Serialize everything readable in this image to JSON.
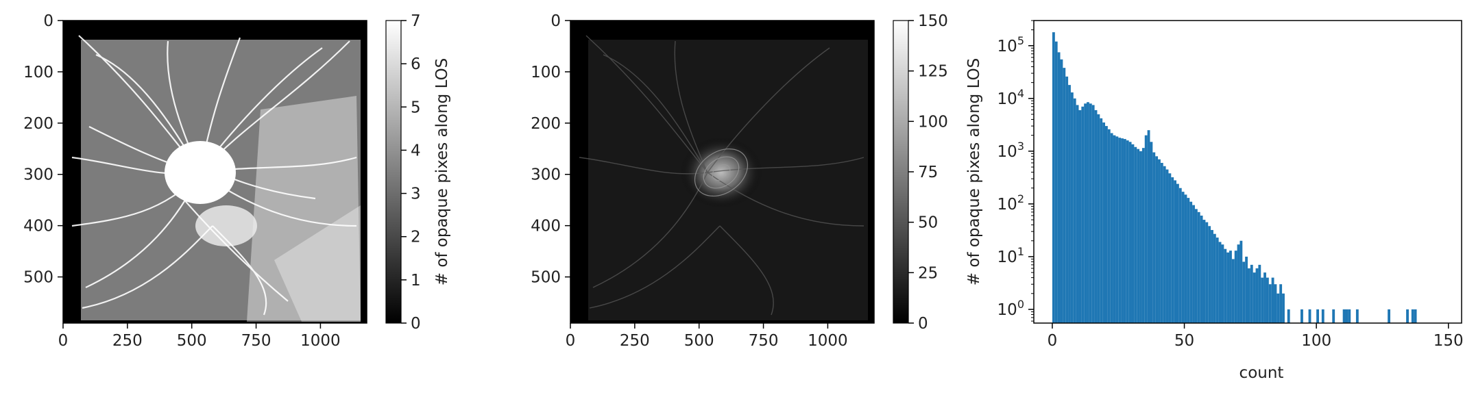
{
  "chart_data": [
    {
      "type": "heatmap",
      "title": "",
      "x_range": [
        0,
        1180
      ],
      "y_range": [
        0,
        590
      ],
      "x_ticks": [
        "0",
        "250",
        "500",
        "750",
        "1000"
      ],
      "y_ticks": [
        "0",
        "100",
        "200",
        "300",
        "400",
        "500"
      ],
      "colormap": "gray",
      "colorbar": {
        "label": "# of opaque pixes along LOS",
        "range": [
          0,
          7
        ],
        "ticks": [
          "0",
          "1",
          "2",
          "3",
          "4",
          "5",
          "6",
          "7"
        ]
      }
    },
    {
      "type": "heatmap",
      "title": "",
      "x_range": [
        0,
        1180
      ],
      "y_range": [
        0,
        590
      ],
      "x_ticks": [
        "0",
        "250",
        "500",
        "750",
        "1000"
      ],
      "y_ticks": [
        "0",
        "100",
        "200",
        "300",
        "400",
        "500"
      ],
      "colormap": "gray",
      "colorbar": {
        "label": "# of opaque pixes along LOS",
        "range": [
          0,
          150
        ],
        "ticks": [
          "0",
          "25",
          "50",
          "75",
          "100",
          "125",
          "150"
        ]
      }
    },
    {
      "type": "bar",
      "title": "",
      "xlabel": "count",
      "ylabel": "",
      "xlim": [
        -7,
        155
      ],
      "yscale": "log",
      "ylim": [
        0.55,
        300000
      ],
      "x_ticks": [
        "0",
        "50",
        "100",
        "150"
      ],
      "y_ticks": [
        {
          "base": "10",
          "exp": "0"
        },
        {
          "base": "10",
          "exp": "1"
        },
        {
          "base": "10",
          "exp": "2"
        },
        {
          "base": "10",
          "exp": "3"
        },
        {
          "base": "10",
          "exp": "4"
        },
        {
          "base": "10",
          "exp": "5"
        }
      ],
      "bar_color": "#1f77b4",
      "bin_width": 1,
      "bin_start": 0,
      "values": [
        180000,
        120000,
        75000,
        55000,
        38000,
        26000,
        18000,
        13000,
        10000,
        7500,
        6000,
        7000,
        8000,
        8500,
        8000,
        7500,
        6000,
        5000,
        4200,
        3500,
        3000,
        2600,
        2200,
        2000,
        1900,
        1800,
        1750,
        1700,
        1600,
        1500,
        1350,
        1200,
        1100,
        1000,
        1150,
        2000,
        2500,
        1500,
        950,
        800,
        700,
        600,
        520,
        450,
        380,
        320,
        280,
        240,
        200,
        170,
        150,
        130,
        110,
        95,
        80,
        70,
        60,
        50,
        45,
        38,
        32,
        27,
        23,
        19,
        17,
        14,
        12,
        13,
        9,
        13,
        17,
        20,
        8,
        10,
        6,
        7,
        5,
        6,
        7,
        4,
        5,
        4,
        3,
        4,
        3,
        2,
        3,
        2,
        0,
        1,
        0,
        0,
        0,
        0,
        1,
        0,
        0,
        1,
        0,
        0,
        1,
        0,
        1,
        0,
        0,
        0,
        1,
        0,
        0,
        0,
        1,
        1,
        1,
        0,
        0,
        1,
        0,
        0,
        0,
        0,
        0,
        0,
        0,
        0,
        0,
        0,
        0,
        1,
        0,
        0,
        0,
        0,
        0,
        0,
        1,
        0,
        1,
        1
      ]
    }
  ]
}
